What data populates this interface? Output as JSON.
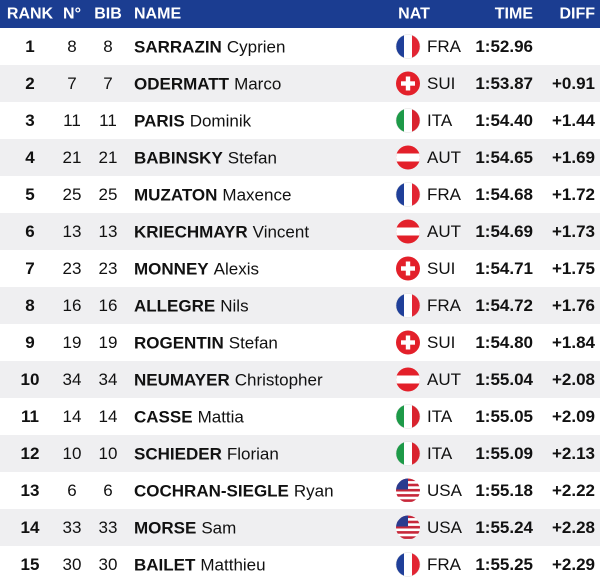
{
  "header": {
    "rank": "RANK",
    "no": "N°",
    "bib": "BIB",
    "name": "NAME",
    "nat": "NAT",
    "time": "TIME",
    "diff": "DIFF"
  },
  "rows": [
    {
      "rank": 1,
      "no": 8,
      "bib": 8,
      "surname": "SARRAZIN",
      "firstname": "Cyprien",
      "nat": "FRA",
      "time": "1:52.96",
      "diff": null
    },
    {
      "rank": 2,
      "no": 7,
      "bib": 7,
      "surname": "ODERMATT",
      "firstname": "Marco",
      "nat": "SUI",
      "time": "1:53.87",
      "diff": "+0.91"
    },
    {
      "rank": 3,
      "no": 11,
      "bib": 11,
      "surname": "PARIS",
      "firstname": "Dominik",
      "nat": "ITA",
      "time": "1:54.40",
      "diff": "+1.44"
    },
    {
      "rank": 4,
      "no": 21,
      "bib": 21,
      "surname": "BABINSKY",
      "firstname": "Stefan",
      "nat": "AUT",
      "time": "1:54.65",
      "diff": "+1.69"
    },
    {
      "rank": 5,
      "no": 25,
      "bib": 25,
      "surname": "MUZATON",
      "firstname": "Maxence",
      "nat": "FRA",
      "time": "1:54.68",
      "diff": "+1.72"
    },
    {
      "rank": 6,
      "no": 13,
      "bib": 13,
      "surname": "KRIECHMAYR",
      "firstname": "Vincent",
      "nat": "AUT",
      "time": "1:54.69",
      "diff": "+1.73"
    },
    {
      "rank": 7,
      "no": 23,
      "bib": 23,
      "surname": "MONNEY",
      "firstname": "Alexis",
      "nat": "SUI",
      "time": "1:54.71",
      "diff": "+1.75"
    },
    {
      "rank": 8,
      "no": 16,
      "bib": 16,
      "surname": "ALLEGRE",
      "firstname": "Nils",
      "nat": "FRA",
      "time": "1:54.72",
      "diff": "+1.76"
    },
    {
      "rank": 9,
      "no": 19,
      "bib": 19,
      "surname": "ROGENTIN",
      "firstname": "Stefan",
      "nat": "SUI",
      "time": "1:54.80",
      "diff": "+1.84"
    },
    {
      "rank": 10,
      "no": 34,
      "bib": 34,
      "surname": "NEUMAYER",
      "firstname": "Christopher",
      "nat": "AUT",
      "time": "1:55.04",
      "diff": "+2.08"
    },
    {
      "rank": 11,
      "no": 14,
      "bib": 14,
      "surname": "CASSE",
      "firstname": "Mattia",
      "nat": "ITA",
      "time": "1:55.05",
      "diff": "+2.09"
    },
    {
      "rank": 12,
      "no": 10,
      "bib": 10,
      "surname": "SCHIEDER",
      "firstname": "Florian",
      "nat": "ITA",
      "time": "1:55.09",
      "diff": "+2.13"
    },
    {
      "rank": 13,
      "no": 6,
      "bib": 6,
      "surname": "COCHRAN-SIEGLE",
      "firstname": "Ryan",
      "nat": "USA",
      "time": "1:55.18",
      "diff": "+2.22"
    },
    {
      "rank": 14,
      "no": 33,
      "bib": 33,
      "surname": "MORSE",
      "firstname": "Sam",
      "nat": "USA",
      "time": "1:55.24",
      "diff": "+2.28"
    },
    {
      "rank": 15,
      "no": 30,
      "bib": 30,
      "surname": "BAILET",
      "firstname": "Matthieu",
      "nat": "FRA",
      "time": "1:55.25",
      "diff": "+2.29"
    }
  ]
}
